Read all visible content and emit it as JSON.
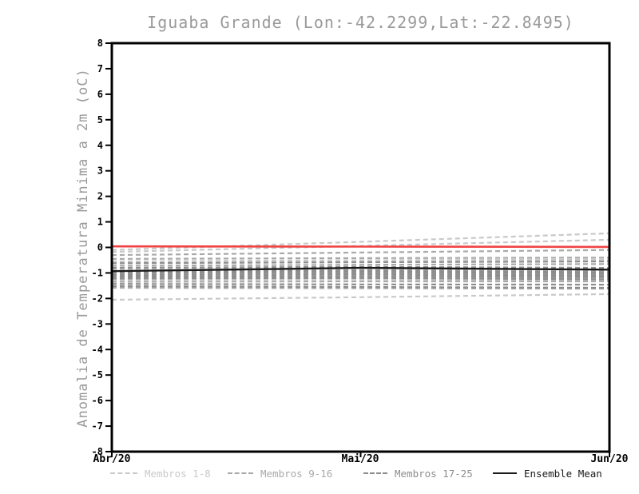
{
  "chart_data": {
    "type": "line",
    "title": "Iguaba Grande (Lon:-42.2299,Lat:-22.8495)",
    "ylabel": "Anomalia de Temperatura Minima a 2m (oC)",
    "xlabel": "",
    "x_categories": [
      "Abr/20",
      "Mai/20",
      "Jun/20"
    ],
    "ylim": [
      -8,
      8
    ],
    "yticks": [
      8,
      7,
      6,
      5,
      4,
      3,
      2,
      1,
      0,
      -1,
      -2,
      -3,
      -4,
      -5,
      -6,
      -7,
      -8
    ],
    "grid": false,
    "legend_position": "bottom",
    "frame_color": "#000000",
    "groups": [
      {
        "name": "Membros 1-8",
        "color": "#c9c9c9",
        "style": "dashed",
        "swatch_width": 34
      },
      {
        "name": "Membros 9-16",
        "color": "#a9a9a9",
        "style": "dashed",
        "swatch_width": 32
      },
      {
        "name": "Membros 17-25",
        "color": "#8d8d8d",
        "style": "dashed",
        "swatch_width": 30
      },
      {
        "name": "Ensemble Mean",
        "color": "#1a1a1a",
        "style": "solid",
        "swatch_width": 30
      }
    ],
    "series": [
      {
        "name": "Membro 1",
        "group": 0,
        "values": [
          -0.1,
          0.22,
          0.55
        ]
      },
      {
        "name": "Membro 2",
        "group": 0,
        "values": [
          -0.18,
          0.06,
          0.3
        ]
      },
      {
        "name": "Membro 3",
        "group": 0,
        "values": [
          -0.85,
          -0.8,
          -0.85
        ]
      },
      {
        "name": "Membro 4",
        "group": 0,
        "values": [
          -1.02,
          -0.98,
          -1.03
        ]
      },
      {
        "name": "Membro 5",
        "group": 0,
        "values": [
          -1.28,
          -1.25,
          -1.3
        ]
      },
      {
        "name": "Membro 6",
        "group": 0,
        "values": [
          -2.05,
          -1.95,
          -1.83
        ]
      },
      {
        "name": "Membro 7",
        "group": 0,
        "values": [
          -0.55,
          -0.5,
          -0.48
        ]
      },
      {
        "name": "Membro 8",
        "group": 0,
        "values": [
          -1.1,
          -1.08,
          -1.12
        ]
      },
      {
        "name": "Membro 9",
        "group": 1,
        "values": [
          -0.3,
          -0.2,
          -0.1
        ]
      },
      {
        "name": "Membro 10",
        "group": 1,
        "values": [
          -0.45,
          -0.42,
          -0.4
        ]
      },
      {
        "name": "Membro 11",
        "group": 1,
        "values": [
          -0.72,
          -0.68,
          -0.65
        ]
      },
      {
        "name": "Membro 12",
        "group": 1,
        "values": [
          -0.92,
          -0.88,
          -0.92
        ]
      },
      {
        "name": "Membro 13",
        "group": 1,
        "values": [
          -1.05,
          -1.02,
          -1.08
        ]
      },
      {
        "name": "Membro 14",
        "group": 1,
        "values": [
          -1.18,
          -1.15,
          -1.18
        ]
      },
      {
        "name": "Membro 15",
        "group": 1,
        "values": [
          -1.35,
          -1.33,
          -1.33
        ]
      },
      {
        "name": "Membro 16",
        "group": 1,
        "values": [
          -1.58,
          -1.6,
          -1.62
        ]
      },
      {
        "name": "Membro 17",
        "group": 2,
        "values": [
          -0.62,
          -0.58,
          -0.55
        ]
      },
      {
        "name": "Membro 18",
        "group": 2,
        "values": [
          -0.8,
          -0.76,
          -0.8
        ]
      },
      {
        "name": "Membro 19",
        "group": 2,
        "values": [
          -0.95,
          -0.92,
          -0.97
        ]
      },
      {
        "name": "Membro 20",
        "group": 2,
        "values": [
          -1.0,
          -0.97,
          -1.02
        ]
      },
      {
        "name": "Membro 21",
        "group": 2,
        "values": [
          -1.08,
          -1.05,
          -1.1
        ]
      },
      {
        "name": "Membro 22",
        "group": 2,
        "values": [
          -1.15,
          -1.12,
          -1.16
        ]
      },
      {
        "name": "Membro 23",
        "group": 2,
        "values": [
          -1.22,
          -1.2,
          -1.25
        ]
      },
      {
        "name": "Membro 24",
        "group": 2,
        "values": [
          -1.52,
          -1.55,
          -1.58
        ]
      },
      {
        "name": "Membro 25",
        "group": 2,
        "values": [
          -1.43,
          -1.45,
          -1.46
        ]
      }
    ],
    "ensemble_mean": {
      "name": "Ensemble Mean",
      "color": "#1a1a1a",
      "values": [
        -0.93,
        -0.8,
        -0.87
      ]
    },
    "zero_line": {
      "color": "#f04343",
      "values": [
        0.04,
        0.03,
        0.02
      ]
    }
  }
}
